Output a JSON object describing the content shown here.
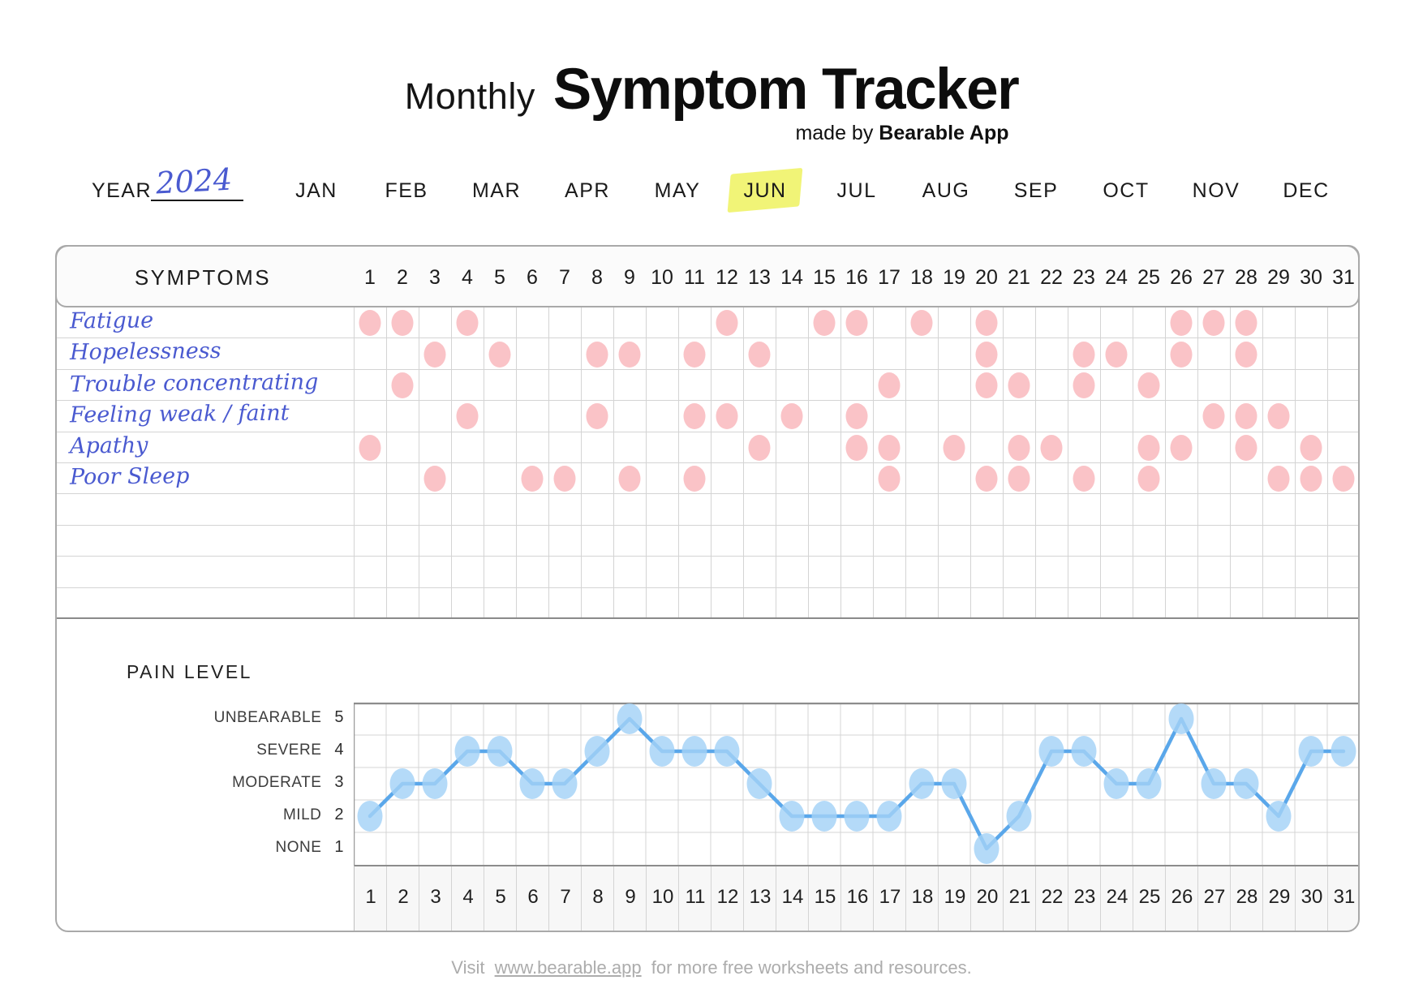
{
  "title": {
    "prefix": "Monthly",
    "main": "Symptom Tracker",
    "made_by_prefix": "made by ",
    "made_by_brand": "Bearable App"
  },
  "year": {
    "label": "YEAR",
    "value": "2024"
  },
  "months": [
    "JAN",
    "FEB",
    "MAR",
    "APR",
    "MAY",
    "JUN",
    "JUL",
    "AUG",
    "SEP",
    "OCT",
    "NOV",
    "DEC"
  ],
  "highlighted_month": "JUN",
  "symptoms_table": {
    "header_label": "SYMPTOMS",
    "days": [
      1,
      2,
      3,
      4,
      5,
      6,
      7,
      8,
      9,
      10,
      11,
      12,
      13,
      14,
      15,
      16,
      17,
      18,
      19,
      20,
      21,
      22,
      23,
      24,
      25,
      26,
      27,
      28,
      29,
      30,
      31
    ],
    "rows": [
      {
        "label": "Fatigue",
        "marked_days": [
          1,
          2,
          4,
          12,
          15,
          16,
          18,
          20,
          26,
          27,
          28
        ]
      },
      {
        "label": "Hopelessness",
        "marked_days": [
          3,
          5,
          8,
          9,
          11,
          13,
          20,
          23,
          24,
          26,
          28
        ]
      },
      {
        "label": "Trouble concentrating",
        "marked_days": [
          2,
          17,
          20,
          21,
          23,
          25
        ]
      },
      {
        "label": "Feeling weak / faint",
        "marked_days": [
          4,
          8,
          11,
          12,
          14,
          16,
          27,
          28,
          29
        ]
      },
      {
        "label": "Apathy",
        "marked_days": [
          1,
          13,
          16,
          17,
          19,
          21,
          22,
          25,
          26,
          28,
          30
        ]
      },
      {
        "label": "Poor Sleep",
        "marked_days": [
          3,
          6,
          7,
          9,
          11,
          17,
          20,
          21,
          23,
          25,
          29,
          30,
          31
        ]
      }
    ],
    "empty_rows": 4
  },
  "pain_chart": {
    "title": "PAIN LEVEL",
    "levels": [
      {
        "label": "UNBEARABLE",
        "value": 5
      },
      {
        "label": "SEVERE",
        "value": 4
      },
      {
        "label": "MODERATE",
        "value": 3
      },
      {
        "label": "MILD",
        "value": 2
      },
      {
        "label": "NONE",
        "value": 1
      }
    ]
  },
  "chart_data": {
    "type": "line",
    "title": "PAIN LEVEL",
    "x": [
      1,
      2,
      3,
      4,
      5,
      6,
      7,
      8,
      9,
      10,
      11,
      12,
      13,
      14,
      15,
      16,
      17,
      18,
      19,
      20,
      21,
      22,
      23,
      24,
      25,
      26,
      27,
      28,
      29,
      30,
      31
    ],
    "series": [
      {
        "name": "Pain level",
        "values": [
          2,
          3,
          3,
          4,
          4,
          3,
          3,
          4,
          5,
          4,
          4,
          4,
          3,
          2,
          2,
          2,
          2,
          3,
          3,
          1,
          2,
          4,
          4,
          3,
          3,
          5,
          3,
          3,
          2,
          4,
          4
        ]
      }
    ],
    "ytick_labels": {
      "5": "UNBEARABLE",
      "4": "SEVERE",
      "3": "MODERATE",
      "2": "MILD",
      "1": "NONE"
    },
    "ylim": [
      0.5,
      5.5
    ],
    "grid": true,
    "legend_position": "none"
  },
  "footer": {
    "prefix": "Visit",
    "link_text": "www.bearable.app",
    "suffix": "for more free worksheets and resources."
  },
  "colors": {
    "symptom_dot": "#fac3c7",
    "pain_line": "#5aa7ea",
    "pain_dot": "#a4d2f7",
    "month_highlight": "#eff25f",
    "handwriting_blue": "#4a5ad0",
    "grid_line": "#d4d4d4",
    "table_border": "#a9a9a9"
  }
}
